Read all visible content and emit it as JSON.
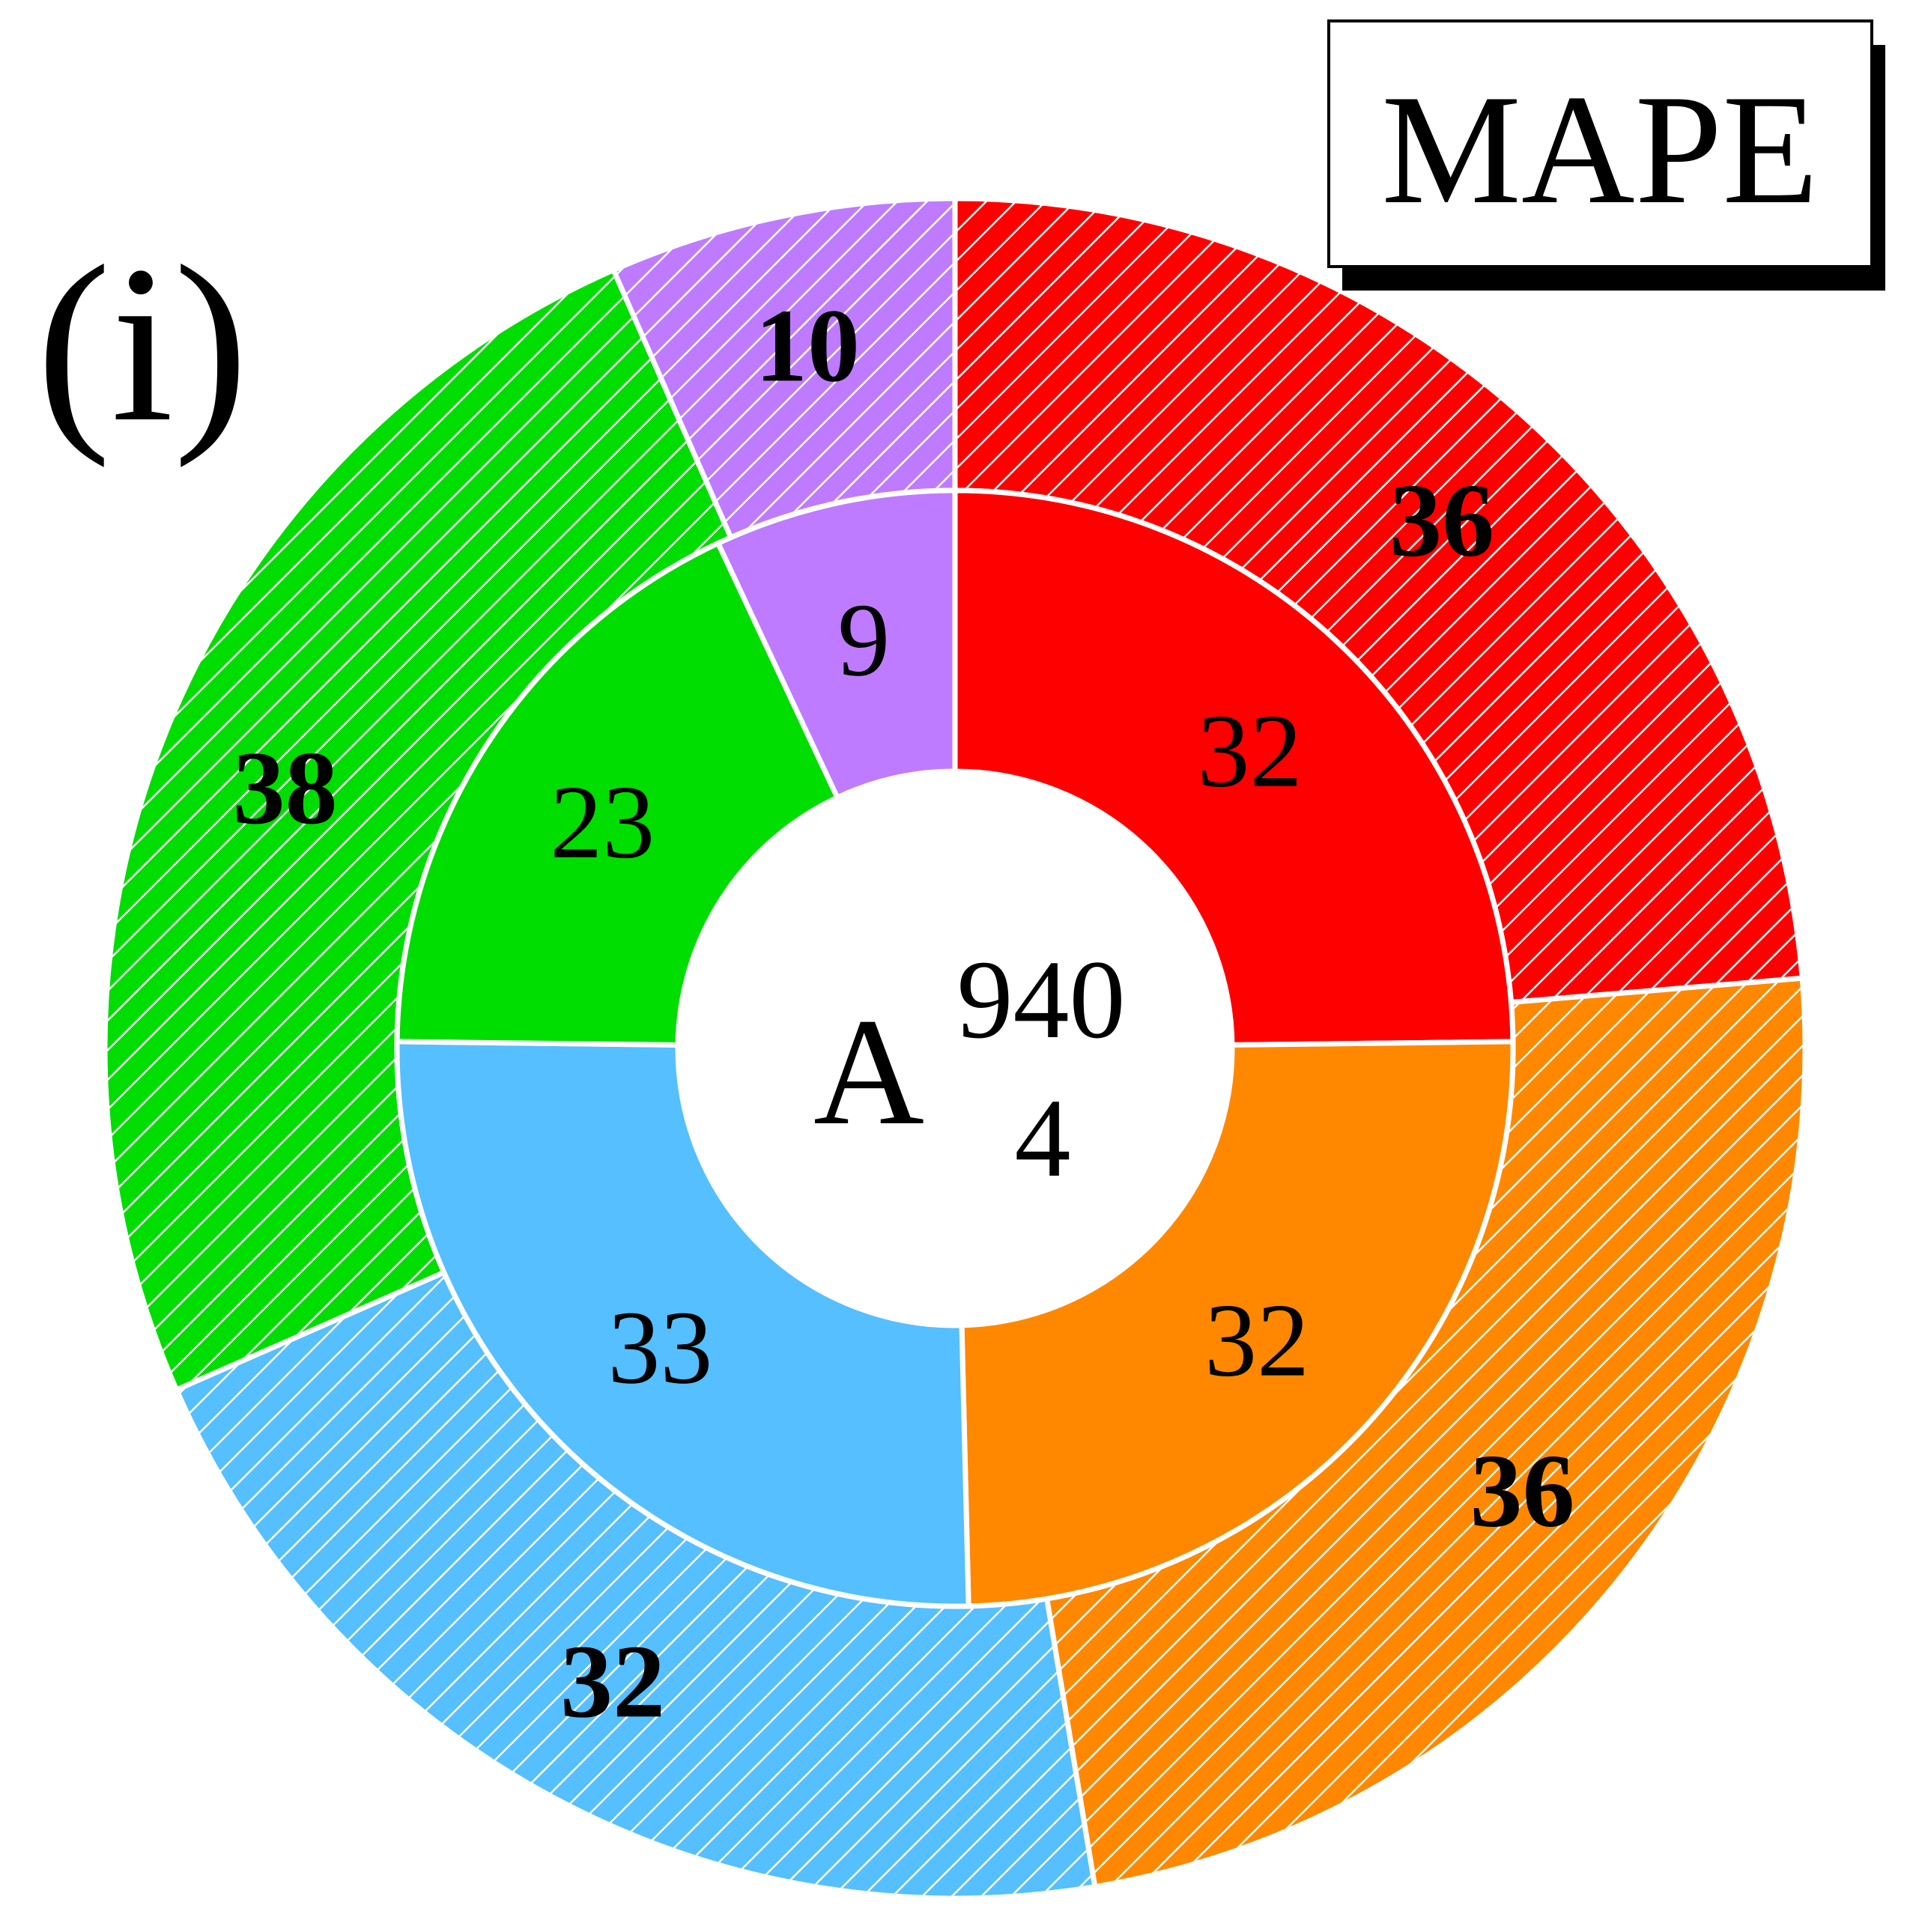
{
  "chart_data": {
    "type": "pie",
    "panel_label": "(i)",
    "title": "MAPE",
    "center_label": {
      "letter": "A",
      "superscript": "940",
      "subscript": "4"
    },
    "categories": [
      "red",
      "orange",
      "blue",
      "green",
      "purple"
    ],
    "colors": {
      "red": "#ff0000",
      "orange": "#ff8800",
      "blue": "#55bfff",
      "green": "#00dd00",
      "purple": "#bf7bff"
    },
    "series": [
      {
        "ring": "inner",
        "hatch": false,
        "bold_labels": false,
        "values": [
          32,
          32,
          33,
          23,
          9
        ]
      },
      {
        "ring": "outer",
        "hatch": true,
        "bold_labels": true,
        "values": [
          36,
          36,
          32,
          38,
          10
        ]
      }
    ]
  }
}
